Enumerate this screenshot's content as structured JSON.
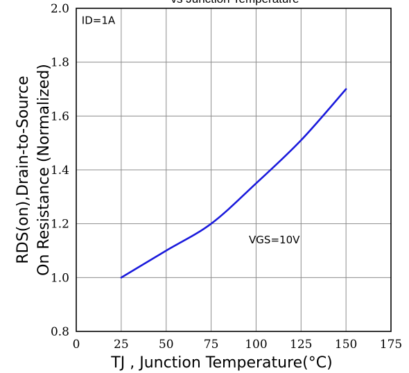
{
  "chart_data": {
    "type": "line",
    "title": "vs Junction Temperature",
    "xlabel": "TJ , Junction Temperature(°C)",
    "ylabel_lines": [
      "RDS(on),Drain-to-Source",
      "On Resistance (Normalized)"
    ],
    "xlim": [
      0,
      175
    ],
    "ylim": [
      0.8,
      2.0
    ],
    "xticks": [
      0,
      25,
      50,
      75,
      100,
      125,
      150,
      175
    ],
    "xtick_labels": [
      "0",
      "25",
      "50",
      "75",
      "100",
      "125",
      "150",
      "175"
    ],
    "yticks": [
      0.8,
      1.0,
      1.2,
      1.4,
      1.6,
      1.8,
      2.0
    ],
    "ytick_labels": [
      "0.8",
      "1.0",
      "1.2",
      "1.4",
      "1.6",
      "1.8",
      "2.0"
    ],
    "grid": true,
    "series": [
      {
        "color": "#1a1adc",
        "x": [
          25,
          50,
          75,
          100,
          125,
          150
        ],
        "y": [
          1.0,
          1.1,
          1.2,
          1.35,
          1.51,
          1.7
        ]
      }
    ],
    "annotations": [
      {
        "text": "ID=1A",
        "x": 3,
        "y": 1.955
      },
      {
        "text": "VGS=10V",
        "x": 96,
        "y": 1.14
      }
    ]
  }
}
